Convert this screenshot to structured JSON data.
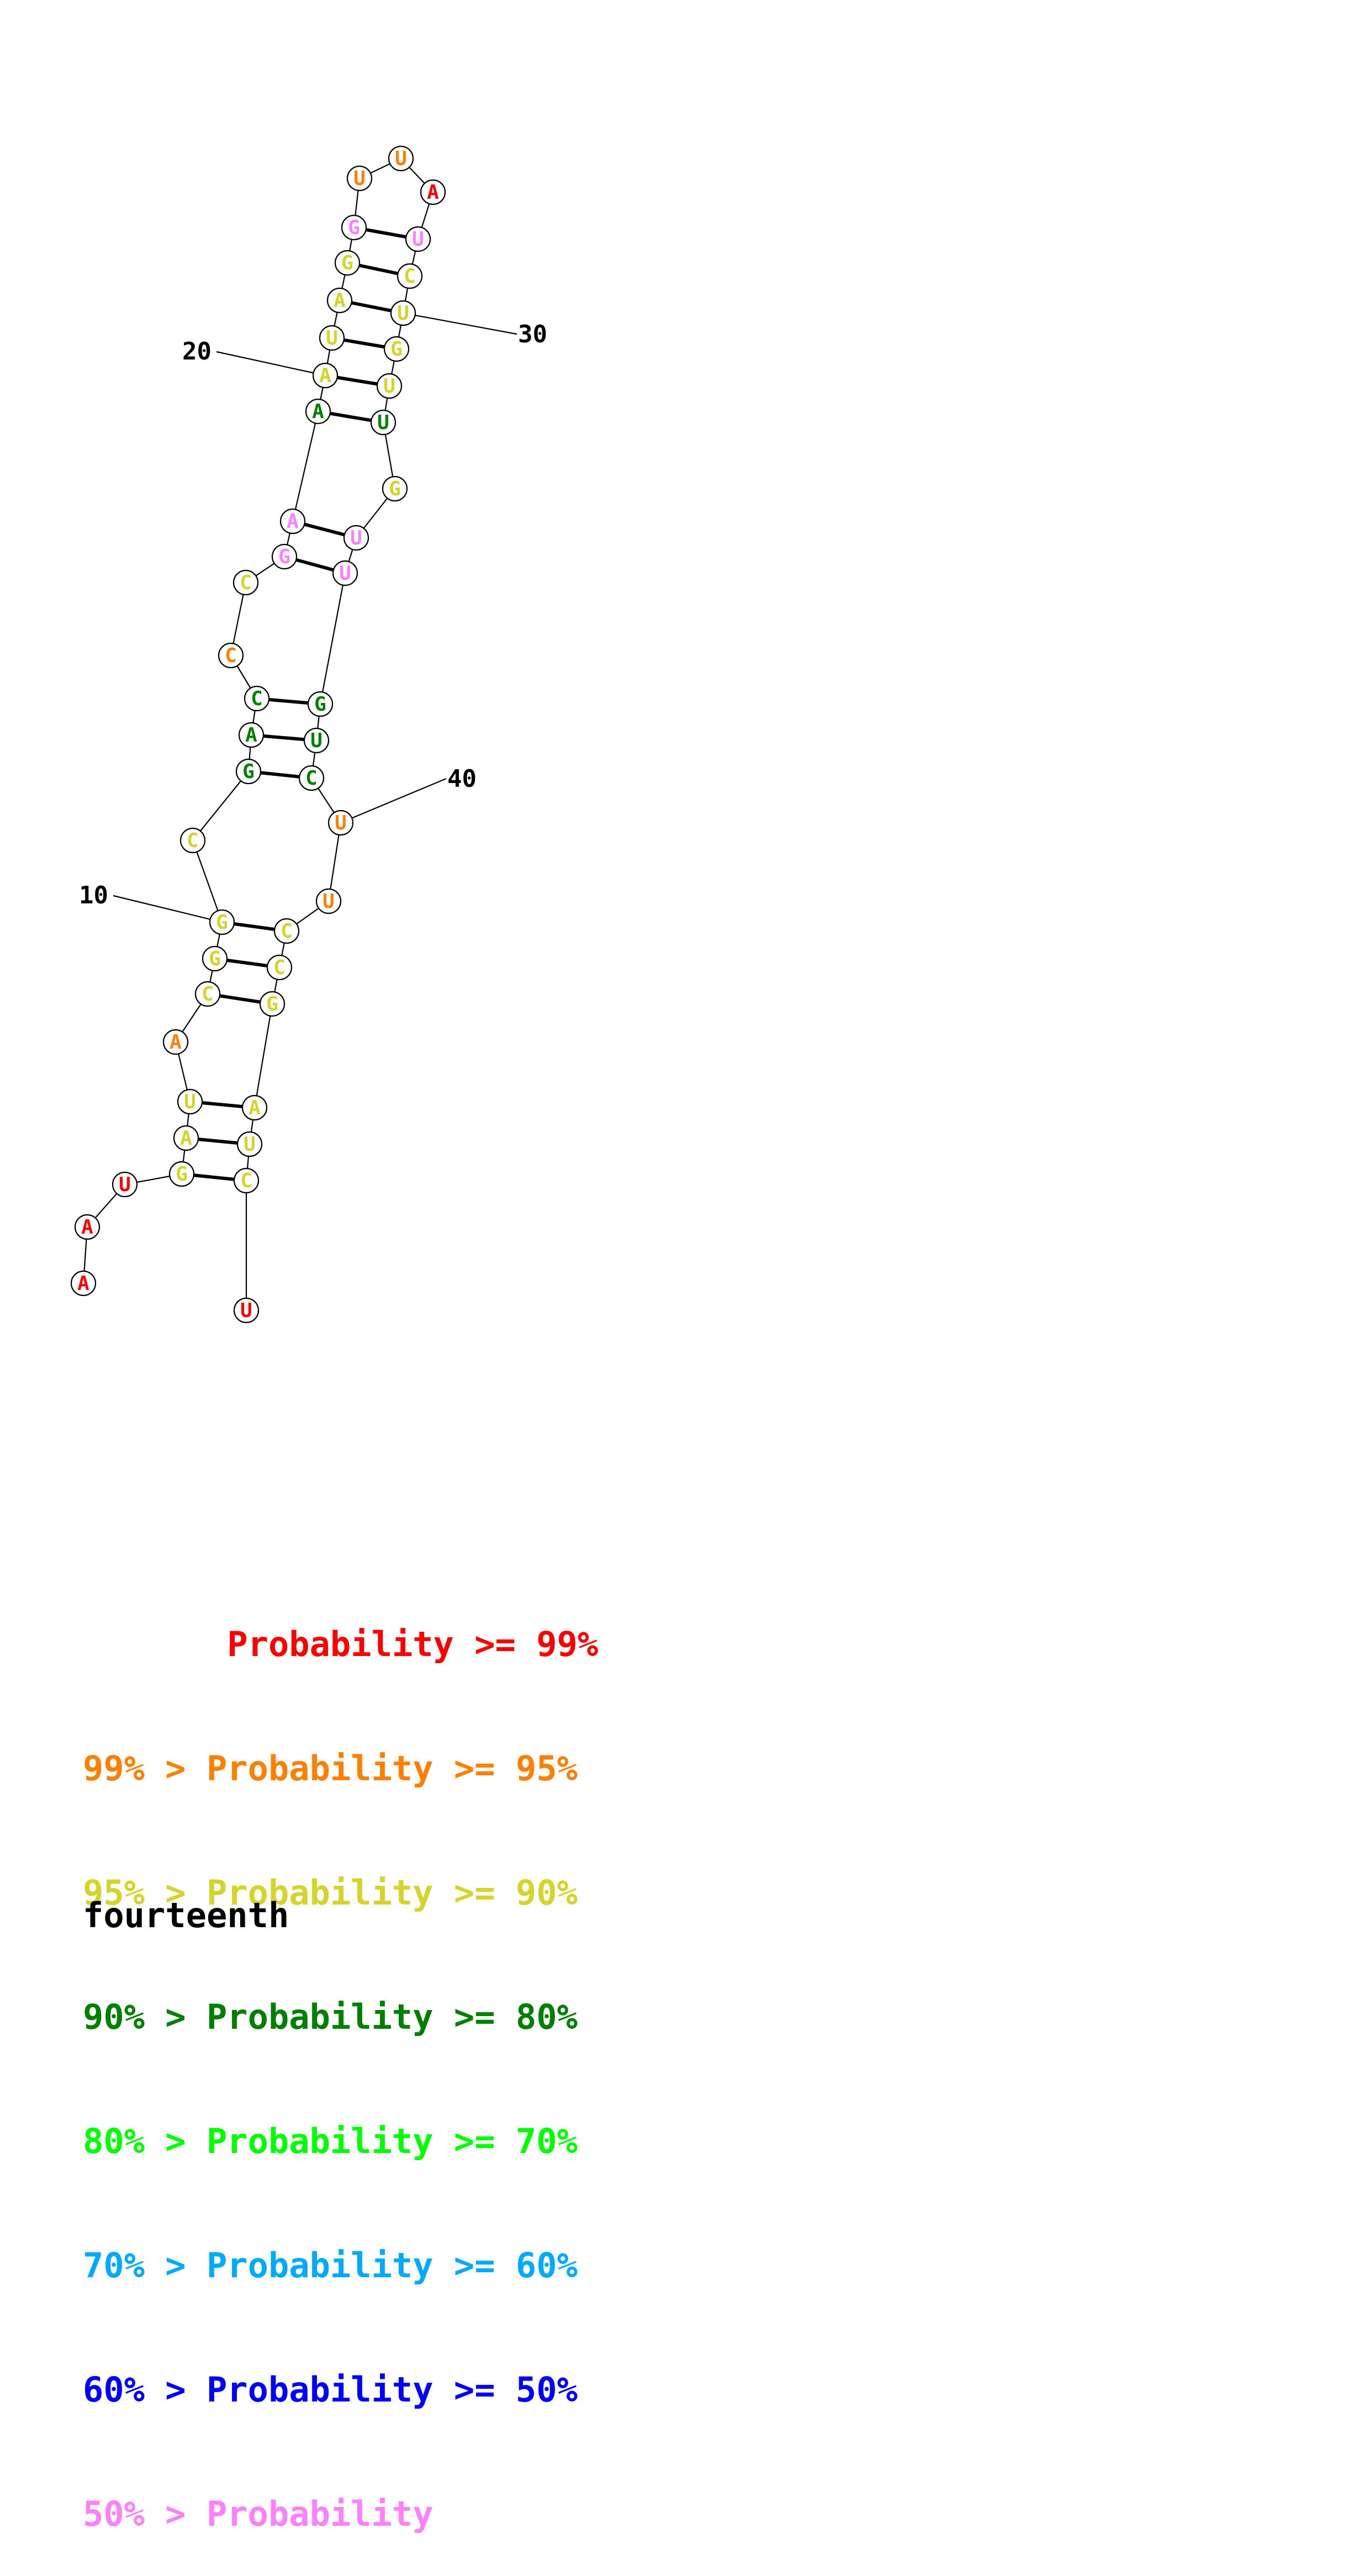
{
  "colors": {
    "p99": "#ff0000",
    "p95": "#ff8000",
    "p90": "#d4d42a",
    "p80": "#008000",
    "p70": "#00ff00",
    "p60": "#00aaff",
    "p50": "#0000ff",
    "plow": "#ff80ff"
  },
  "nucleotides": [
    {
      "n": 1,
      "base": "A",
      "c": "p99"
    },
    {
      "n": 2,
      "base": "A",
      "c": "p99"
    },
    {
      "n": 3,
      "base": "U",
      "c": "p99"
    },
    {
      "n": 4,
      "base": "G",
      "c": "p90"
    },
    {
      "n": 5,
      "base": "A",
      "c": "p90"
    },
    {
      "n": 6,
      "base": "U",
      "c": "p90"
    },
    {
      "n": 7,
      "base": "A",
      "c": "p95"
    },
    {
      "n": 8,
      "base": "C",
      "c": "p90"
    },
    {
      "n": 9,
      "base": "G",
      "c": "p90"
    },
    {
      "n": 10,
      "base": "G",
      "c": "p90"
    },
    {
      "n": 11,
      "base": "C",
      "c": "p90"
    },
    {
      "n": 12,
      "base": "G",
      "c": "p80"
    },
    {
      "n": 13,
      "base": "A",
      "c": "p80"
    },
    {
      "n": 14,
      "base": "C",
      "c": "p80"
    },
    {
      "n": 15,
      "base": "C",
      "c": "p95"
    },
    {
      "n": 16,
      "base": "C",
      "c": "p90"
    },
    {
      "n": 17,
      "base": "G",
      "c": "plow"
    },
    {
      "n": 18,
      "base": "A",
      "c": "plow"
    },
    {
      "n": 19,
      "base": "A",
      "c": "p80"
    },
    {
      "n": 20,
      "base": "A",
      "c": "p90"
    },
    {
      "n": 21,
      "base": "U",
      "c": "p90"
    },
    {
      "n": 22,
      "base": "A",
      "c": "p90"
    },
    {
      "n": 23,
      "base": "G",
      "c": "p90"
    },
    {
      "n": 24,
      "base": "G",
      "c": "plow"
    },
    {
      "n": 25,
      "base": "U",
      "c": "p95"
    },
    {
      "n": 26,
      "base": "U",
      "c": "p95"
    },
    {
      "n": 27,
      "base": "A",
      "c": "p99"
    },
    {
      "n": 28,
      "base": "U",
      "c": "plow"
    },
    {
      "n": 29,
      "base": "C",
      "c": "p90"
    },
    {
      "n": 30,
      "base": "U",
      "c": "p90"
    },
    {
      "n": 31,
      "base": "G",
      "c": "p90"
    },
    {
      "n": 32,
      "base": "U",
      "c": "p90"
    },
    {
      "n": 33,
      "base": "U",
      "c": "p80"
    },
    {
      "n": 34,
      "base": "G",
      "c": "p90"
    },
    {
      "n": 35,
      "base": "U",
      "c": "plow"
    },
    {
      "n": 36,
      "base": "U",
      "c": "plow"
    },
    {
      "n": 37,
      "base": "G",
      "c": "p80"
    },
    {
      "n": 38,
      "base": "U",
      "c": "p80"
    },
    {
      "n": 39,
      "base": "C",
      "c": "p80"
    },
    {
      "n": 40,
      "base": "U",
      "c": "p95"
    },
    {
      "n": 41,
      "base": "U",
      "c": "p95"
    },
    {
      "n": 42,
      "base": "C",
      "c": "p90"
    },
    {
      "n": 43,
      "base": "C",
      "c": "p90"
    },
    {
      "n": 44,
      "base": "G",
      "c": "p90"
    },
    {
      "n": 45,
      "base": "A",
      "c": "p90"
    },
    {
      "n": 46,
      "base": "U",
      "c": "p90"
    },
    {
      "n": 47,
      "base": "C",
      "c": "p90"
    },
    {
      "n": 48,
      "base": "U",
      "c": "p99"
    }
  ],
  "pairs": [
    [
      4,
      47
    ],
    [
      5,
      46
    ],
    [
      6,
      45
    ],
    [
      8,
      44
    ],
    [
      9,
      43
    ],
    [
      10,
      42
    ],
    [
      12,
      39
    ],
    [
      13,
      38
    ],
    [
      14,
      37
    ],
    [
      17,
      36
    ],
    [
      18,
      35
    ],
    [
      19,
      33
    ],
    [
      20,
      32
    ],
    [
      21,
      31
    ],
    [
      22,
      30
    ],
    [
      23,
      29
    ],
    [
      24,
      28
    ]
  ],
  "position_labels": [
    {
      "text": "10",
      "at": 10
    },
    {
      "text": "20",
      "at": 20
    },
    {
      "text": "30",
      "at": 30
    },
    {
      "text": "40",
      "at": 40
    }
  ],
  "legend": [
    {
      "text": "       Probability >= 99%",
      "c": "p99"
    },
    {
      "text": "99% > Probability >= 95%",
      "c": "p95"
    },
    {
      "text": "95% > Probability >= 90%",
      "c": "p90"
    },
    {
      "text": "90% > Probability >= 80%",
      "c": "p80"
    },
    {
      "text": "80% > Probability >= 70%",
      "c": "p70"
    },
    {
      "text": "70% > Probability >= 60%",
      "c": "p60"
    },
    {
      "text": "60% > Probability >= 50%",
      "c": "p50"
    },
    {
      "text": "50% > Probability",
      "c": "plow"
    }
  ],
  "title": "fourteenth"
}
